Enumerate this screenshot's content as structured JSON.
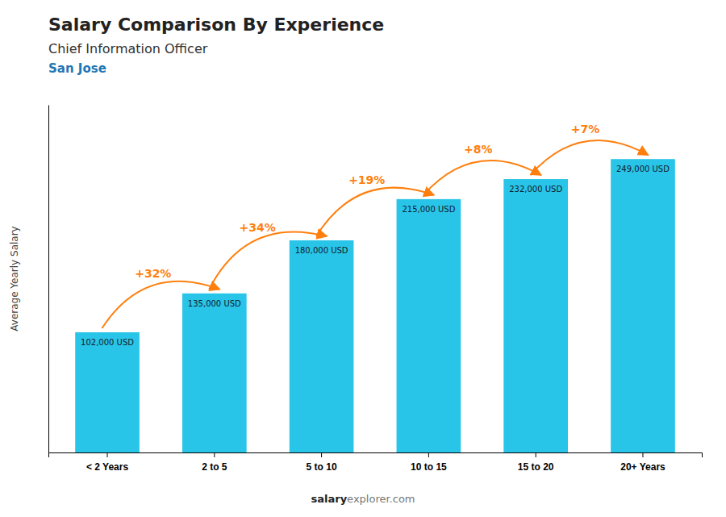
{
  "chart_data": {
    "type": "bar",
    "title": "Salary Comparison By Experience",
    "subtitle": [
      "Chief Information Officer",
      "San Jose"
    ],
    "ylabel": "Average Yearly Salary",
    "categories": [
      "< 2 Years",
      "2 to 5",
      "5 to 10",
      "10 to 15",
      "15 to 20",
      "20+ Years"
    ],
    "values": [
      102000,
      135000,
      180000,
      215000,
      232000,
      249000
    ],
    "value_labels": [
      "102,000 USD",
      "135,000 USD",
      "180,000 USD",
      "215,000 USD",
      "232,000 USD",
      "249,000 USD"
    ],
    "data_labels": true,
    "annotations": [
      "+32%",
      "+34%",
      "+19%",
      "+8%",
      "+7%"
    ],
    "footer": [
      "salary",
      "explorer.com"
    ],
    "color": "#29C5E8",
    "ylim": [
      0,
      295000
    ],
    "tick_labels": "x",
    "grid": false
  }
}
